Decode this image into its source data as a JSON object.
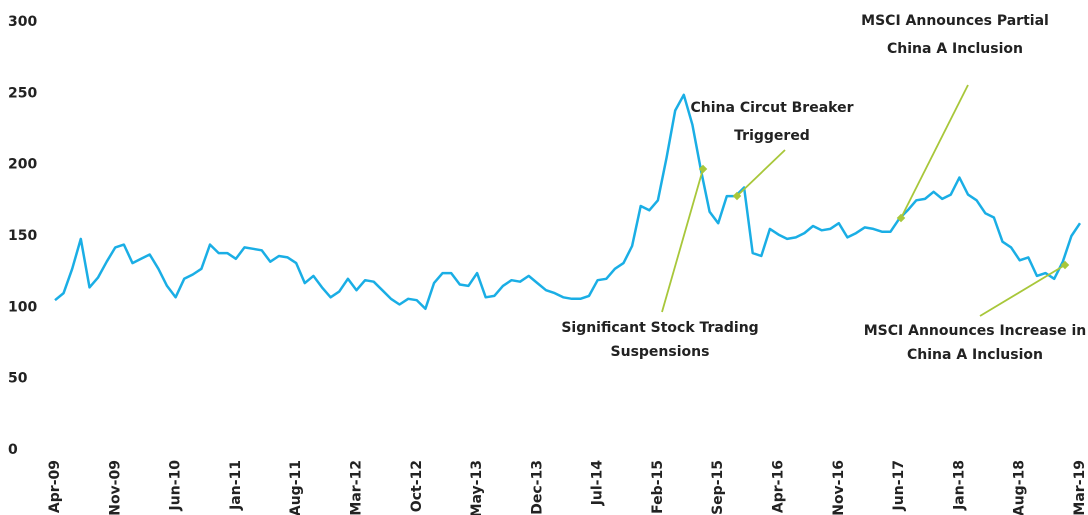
{
  "chart_data": {
    "type": "line",
    "categories": [
      "Apr-09",
      null,
      null,
      null,
      null,
      null,
      null,
      "Nov-09",
      null,
      null,
      null,
      null,
      null,
      null,
      "Jun-10",
      null,
      null,
      null,
      null,
      null,
      null,
      "Jan-11",
      null,
      null,
      null,
      null,
      null,
      null,
      "Aug-11",
      null,
      null,
      null,
      null,
      null,
      null,
      "Mar-12",
      null,
      null,
      null,
      null,
      null,
      null,
      "Oct-12",
      null,
      null,
      null,
      null,
      null,
      null,
      "May-13",
      null,
      null,
      null,
      null,
      null,
      null,
      "Dec-13",
      null,
      null,
      null,
      null,
      null,
      null,
      "Jul-14",
      null,
      null,
      null,
      null,
      null,
      null,
      "Feb-15",
      null,
      null,
      null,
      null,
      null,
      null,
      "Sep-15",
      null,
      null,
      null,
      null,
      null,
      null,
      "Apr-16",
      null,
      null,
      null,
      null,
      null,
      null,
      "Nov-16",
      null,
      null,
      null,
      null,
      null,
      null,
      "Jun-17",
      null,
      null,
      null,
      null,
      null,
      null,
      "Jan-18",
      null,
      null,
      null,
      null,
      null,
      null,
      "Aug-18",
      null,
      null,
      null,
      null,
      null,
      null,
      "Mar-19"
    ],
    "series": [
      {
        "color": "#1aaee5",
        "values": [
          105,
          110,
          127,
          148,
          114,
          121,
          132,
          142,
          144,
          131,
          134,
          137,
          127,
          115,
          107,
          120,
          123,
          127,
          144,
          138,
          138,
          134,
          142,
          141,
          140,
          132,
          136,
          135,
          131,
          117,
          122,
          114,
          107,
          111,
          120,
          112,
          119,
          118,
          112,
          106,
          102,
          106,
          105,
          99,
          117,
          124,
          124,
          116,
          115,
          124,
          107,
          108,
          115,
          119,
          118,
          122,
          117,
          112,
          110,
          107,
          106,
          106,
          108,
          119,
          120,
          127,
          131,
          143,
          171,
          168,
          175,
          205,
          238,
          249,
          228,
          196,
          167,
          159,
          178,
          178,
          184,
          138,
          136,
          155,
          151,
          148,
          149,
          152,
          157,
          154,
          155,
          159,
          149,
          152,
          156,
          155,
          153,
          153,
          162,
          168,
          175,
          176,
          181,
          176,
          179,
          191,
          179,
          175,
          166,
          163,
          146,
          142,
          133,
          135,
          122,
          124,
          120,
          132,
          150,
          159
        ]
      }
    ],
    "ylim": [
      0,
      300
    ],
    "yticks": [
      0,
      50,
      100,
      150,
      200,
      250,
      300
    ],
    "grid": false,
    "annotations": [
      {
        "lines": [
          "Significant Stock Trading",
          "Suspensions"
        ]
      },
      {
        "lines": [
          "China Circut Breaker",
          "Triggered"
        ]
      },
      {
        "lines": [
          "MSCI Announces Partial",
          "China A Inclusion"
        ]
      },
      {
        "lines": [
          "MSCI Announces Increase in",
          "China A Inclusion"
        ]
      }
    ],
    "annotation_color": "#a8c73a"
  }
}
